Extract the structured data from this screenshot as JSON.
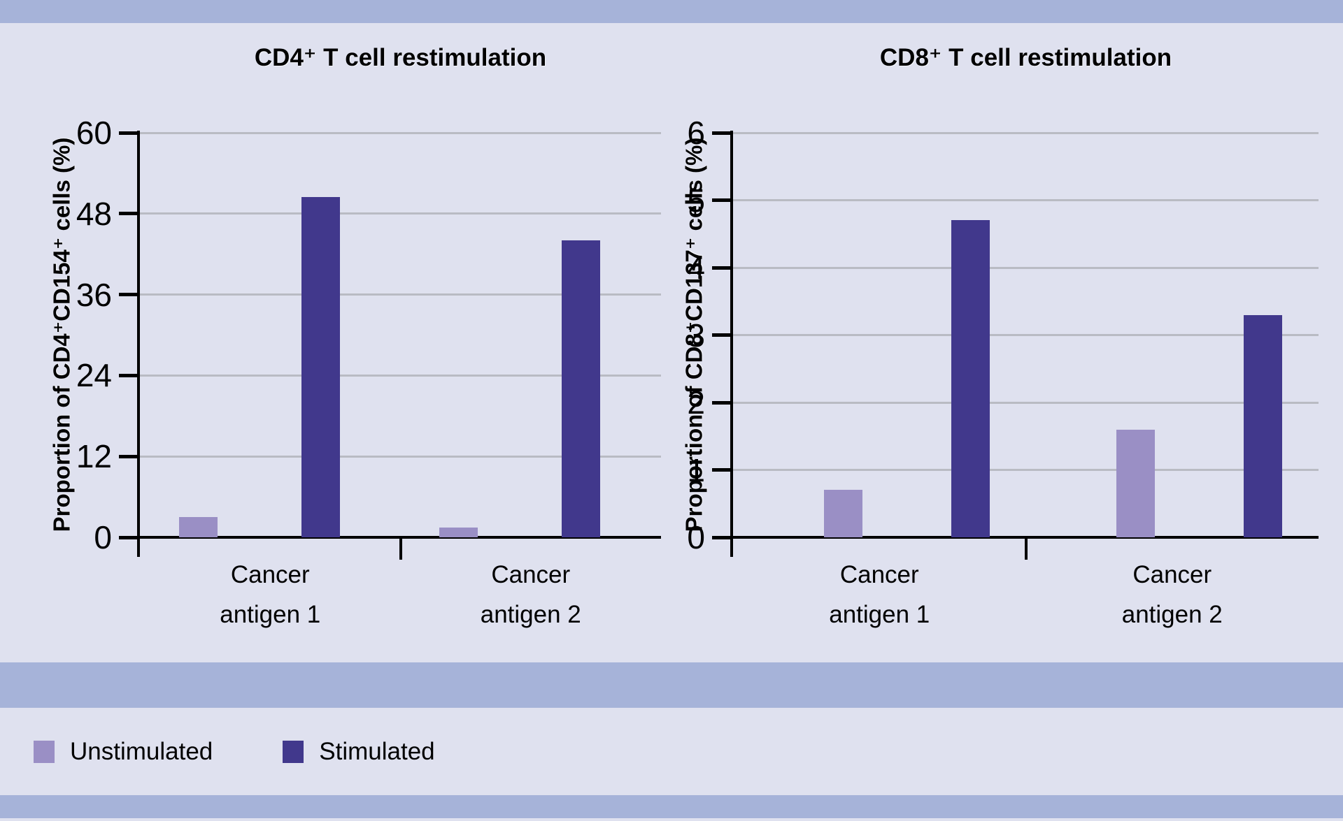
{
  "page": {
    "background_color": "#dfe1ef",
    "band_color": "#a6b3d9",
    "gridline_color": "#b9bbc3",
    "axis_color": "#000000"
  },
  "legend": {
    "items": [
      {
        "label": "Unstimulated",
        "color": "#9a8fc5"
      },
      {
        "label": "Stimulated",
        "color": "#41388c"
      }
    ]
  },
  "chart_data": [
    {
      "type": "bar",
      "title": "CD4⁺ T cell restimulation",
      "ylabel": "Proportion of CD4⁺CD154⁺ cells (%)",
      "xlabel": "",
      "categories": [
        [
          "Cancer",
          "antigen 1"
        ],
        [
          "Cancer",
          "antigen 2"
        ]
      ],
      "series": [
        {
          "name": "Unstimulated",
          "color": "#9a8fc5",
          "values": [
            3.0,
            1.5
          ]
        },
        {
          "name": "Stimulated",
          "color": "#41388c",
          "values": [
            50.5,
            44.0
          ]
        }
      ],
      "ylim": [
        0,
        60
      ],
      "yticks": [
        0,
        12,
        24,
        36,
        48,
        60
      ],
      "grid": true,
      "legend_position": "bottom"
    },
    {
      "type": "bar",
      "title": "CD8⁺ T cell restimulation",
      "ylabel": "Proportion of CD8⁺CD137⁺ cells (%)",
      "xlabel": "",
      "categories": [
        [
          "Cancer",
          "antigen 1"
        ],
        [
          "Cancer",
          "antigen 2"
        ]
      ],
      "series": [
        {
          "name": "Unstimulated",
          "color": "#9a8fc5",
          "values": [
            0.7,
            1.6
          ]
        },
        {
          "name": "Stimulated",
          "color": "#41388c",
          "values": [
            4.7,
            3.3
          ]
        }
      ],
      "ylim": [
        0,
        6
      ],
      "yticks": [
        0,
        1,
        2,
        3,
        4,
        5,
        6
      ],
      "grid": true,
      "legend_position": "bottom"
    }
  ]
}
